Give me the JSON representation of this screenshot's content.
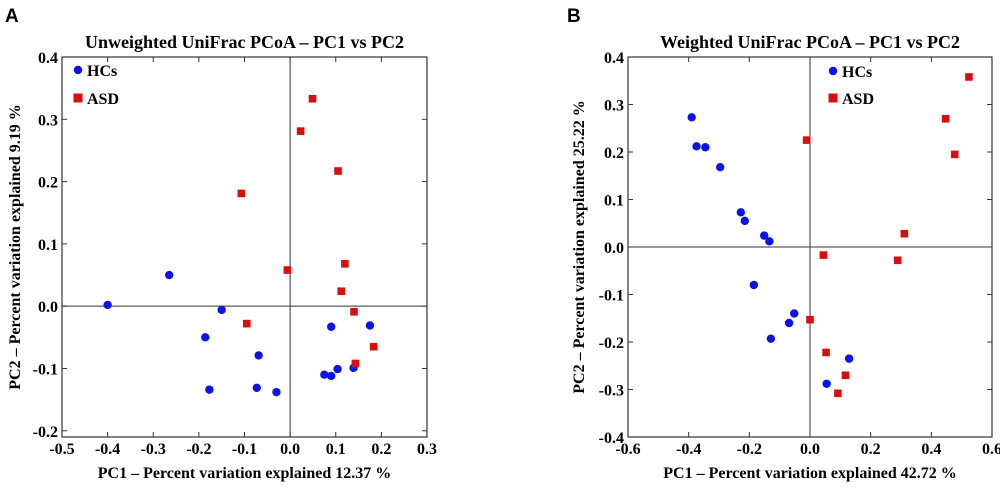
{
  "chart_data": [
    {
      "type": "scatter",
      "panel_label": "A",
      "title": "Unweighted UniFrac PCoA – PC1 vs PC2",
      "xlabel": "PC1 – Percent variation explained 12.37 %",
      "ylabel": "PC2 – Percent variation explained 9.19 %",
      "xlim": [
        -0.5,
        0.3
      ],
      "ylim": [
        -0.21,
        0.4
      ],
      "xticks": [
        "-0.5",
        "-0.4",
        "-0.3",
        "-0.2",
        "-0.1",
        "0.0",
        "0.1",
        "0.2",
        "0.3"
      ],
      "xtick_values": [
        -0.5,
        -0.4,
        -0.3,
        -0.2,
        -0.1,
        0.0,
        0.1,
        0.2,
        0.3
      ],
      "yticks": [
        "-0.2",
        "-0.1",
        "0.0",
        "0.1",
        "0.2",
        "0.3",
        "0.4"
      ],
      "ytick_values": [
        -0.2,
        -0.1,
        0.0,
        0.1,
        0.2,
        0.3,
        0.4
      ],
      "legend_position": "top-left",
      "series": [
        {
          "name": "HCs",
          "marker": "circle",
          "color": "#0a14e6",
          "points": [
            [
              -0.4,
              0.002
            ],
            [
              -0.265,
              0.05
            ],
            [
              -0.15,
              -0.006
            ],
            [
              -0.186,
              -0.05
            ],
            [
              -0.177,
              -0.134
            ],
            [
              -0.069,
              -0.079
            ],
            [
              -0.073,
              -0.131
            ],
            [
              -0.03,
              -0.138
            ],
            [
              0.09,
              -0.033
            ],
            [
              0.175,
              -0.031
            ],
            [
              0.075,
              -0.11
            ],
            [
              0.09,
              -0.112
            ],
            [
              0.104,
              -0.101
            ],
            [
              0.139,
              -0.099
            ]
          ]
        },
        {
          "name": "ASD",
          "marker": "square",
          "color": "#d90f0f",
          "points": [
            [
              0.049,
              0.333
            ],
            [
              0.023,
              0.281
            ],
            [
              0.105,
              0.217
            ],
            [
              -0.107,
              0.181
            ],
            [
              -0.006,
              0.058
            ],
            [
              0.12,
              0.068
            ],
            [
              0.112,
              0.024
            ],
            [
              0.14,
              -0.009
            ],
            [
              0.183,
              -0.065
            ],
            [
              0.143,
              -0.092
            ],
            [
              -0.095,
              -0.028
            ]
          ]
        }
      ]
    },
    {
      "type": "scatter",
      "panel_label": "B",
      "title": "Weighted UniFrac PCoA – PC1 vs PC2",
      "xlabel": "PC1 – Percent variation explained 42.72 %",
      "ylabel": "PC2 – Percent variation explained 25.22 %",
      "xlim": [
        -0.6,
        0.6
      ],
      "ylim": [
        -0.4,
        0.4
      ],
      "xticks": [
        "-0.6",
        "-0.4",
        "-0.2",
        "0.0",
        "0.2",
        "0.4",
        "0.6"
      ],
      "xtick_values": [
        -0.6,
        -0.4,
        -0.2,
        0.0,
        0.2,
        0.4,
        0.6
      ],
      "yticks": [
        "-0.4",
        "-0.3",
        "-0.2",
        "-0.1",
        "0.0",
        "0.1",
        "0.2",
        "0.3",
        "0.4"
      ],
      "ytick_values": [
        -0.4,
        -0.3,
        -0.2,
        -0.1,
        0.0,
        0.1,
        0.2,
        0.3,
        0.4
      ],
      "legend_position": "top-center",
      "series": [
        {
          "name": "HCs",
          "marker": "circle",
          "color": "#0a14e6",
          "points": [
            [
              -0.39,
              0.273
            ],
            [
              -0.374,
              0.212
            ],
            [
              -0.345,
              0.21
            ],
            [
              -0.296,
              0.168
            ],
            [
              -0.228,
              0.073
            ],
            [
              -0.215,
              0.055
            ],
            [
              -0.151,
              0.024
            ],
            [
              -0.134,
              0.012
            ],
            [
              -0.185,
              -0.08
            ],
            [
              -0.069,
              -0.16
            ],
            [
              -0.052,
              -0.14
            ],
            [
              -0.129,
              -0.193
            ],
            [
              0.055,
              -0.288
            ],
            [
              0.129,
              -0.235
            ]
          ]
        },
        {
          "name": "ASD",
          "marker": "square",
          "color": "#d90f0f",
          "points": [
            [
              -0.011,
              0.225
            ],
            [
              0.044,
              -0.017
            ],
            [
              0.289,
              -0.028
            ],
            [
              0.311,
              0.028
            ],
            [
              0.447,
              0.27
            ],
            [
              0.477,
              0.195
            ],
            [
              0.524,
              0.358
            ],
            [
              0.0,
              -0.153
            ],
            [
              0.053,
              -0.222
            ],
            [
              0.117,
              -0.27
            ],
            [
              0.092,
              -0.308
            ]
          ]
        }
      ]
    }
  ]
}
